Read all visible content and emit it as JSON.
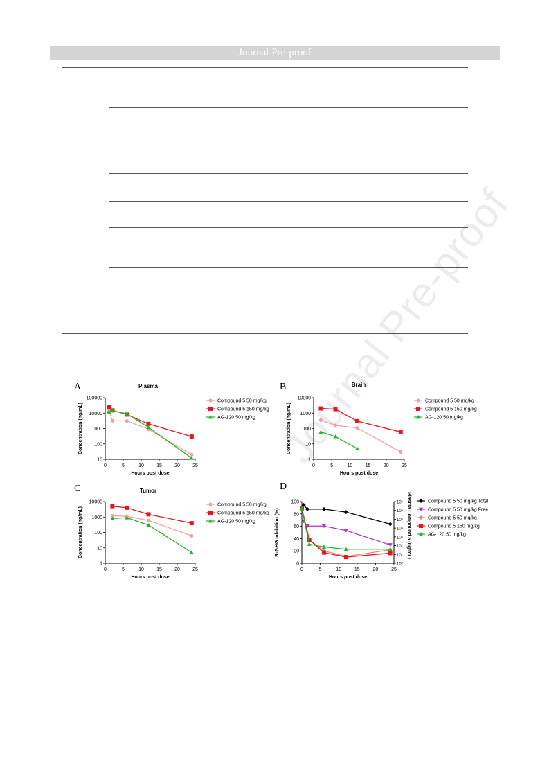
{
  "header": {
    "title": "Journal Pre-proof"
  },
  "watermark": {
    "text": "Journal Pre-proof"
  },
  "figure": {
    "panels": [
      {
        "letter": "A",
        "title": "Plasma"
      },
      {
        "letter": "B",
        "title": "Brain"
      },
      {
        "letter": "C",
        "title": "Tumor"
      },
      {
        "letter": "D",
        "title": ""
      }
    ]
  },
  "colors": {
    "c5_50": "#f4a0a0",
    "c5_150": "#e8141e",
    "ag120": "#22b422",
    "total": "#000000",
    "free": "#b030c8",
    "c5_50_D": "#f08080",
    "c5_150_D": "#e8141e"
  },
  "chart_data": [
    {
      "type": "line",
      "title": "Plasma",
      "xlabel": "Hours post dose",
      "ylabel": "Concentration (ng/mL)",
      "yscale": "log",
      "xlim": [
        0,
        25
      ],
      "ylim": [
        10,
        100000
      ],
      "xticks": [
        "0",
        "5",
        "10",
        "15",
        "20",
        "25"
      ],
      "yticks": [
        "10",
        "100",
        "1000",
        "10000",
        "100000"
      ],
      "legend": "right",
      "series": [
        {
          "name": "Compound 5 50 mg/kg",
          "color": "#f4a0a0",
          "marker": "circle",
          "x": [
            1,
            2,
            6,
            12,
            24
          ],
          "y": [
            15000,
            3200,
            3100,
            900,
            20
          ]
        },
        {
          "name": "Compound 5 150 mg/kg",
          "color": "#e8141e",
          "marker": "square",
          "x": [
            1,
            2,
            6,
            12,
            24
          ],
          "y": [
            25000,
            15000,
            8000,
            2000,
            300
          ]
        },
        {
          "name": "AG-120 50 mg/kg",
          "color": "#22b422",
          "marker": "triangle",
          "x": [
            1,
            2,
            6,
            12,
            24
          ],
          "y": [
            12000,
            14000,
            9000,
            1200,
            12
          ]
        }
      ]
    },
    {
      "type": "line",
      "title": "Brain",
      "xlabel": "Hours post dose",
      "ylabel": "Concentration (ng/mL)",
      "yscale": "log",
      "xlim": [
        0,
        25
      ],
      "ylim": [
        1,
        10000
      ],
      "xticks": [
        "0",
        "5",
        "10",
        "15",
        "20",
        "25"
      ],
      "yticks": [
        "1",
        "10",
        "100",
        "1000",
        "10000"
      ],
      "legend": "right",
      "series": [
        {
          "name": "Compound 5 50 mg/kg",
          "color": "#f4a0a0",
          "marker": "circle",
          "x": [
            2,
            6,
            12,
            24
          ],
          "y": [
            350,
            160,
            110,
            3
          ]
        },
        {
          "name": "Compound 5 150 mg/kg",
          "color": "#e8141e",
          "marker": "square",
          "x": [
            2,
            6,
            12,
            24
          ],
          "y": [
            2000,
            1800,
            300,
            60
          ]
        },
        {
          "name": "AG-120 50 mg/kg",
          "color": "#22b422",
          "marker": "triangle",
          "x": [
            2,
            6,
            12
          ],
          "y": [
            60,
            30,
            5
          ]
        }
      ]
    },
    {
      "type": "line",
      "title": "Tumor",
      "xlabel": "Hours post dose",
      "ylabel": "Concentration (ng/mL)",
      "yscale": "log",
      "xlim": [
        0,
        25
      ],
      "ylim": [
        1,
        10000
      ],
      "xticks": [
        "0",
        "5",
        "10",
        "15",
        "20",
        "25"
      ],
      "yticks": [
        "1",
        "10",
        "100",
        "1000",
        "10000"
      ],
      "legend": "right",
      "series": [
        {
          "name": "Compound 5 50 mg/kg",
          "color": "#f4a0a0",
          "marker": "circle",
          "x": [
            2,
            6,
            12,
            24
          ],
          "y": [
            1200,
            1100,
            600,
            60
          ]
        },
        {
          "name": "Compound 5 150 mg/kg",
          "color": "#e8141e",
          "marker": "square",
          "x": [
            2,
            6,
            12,
            24
          ],
          "y": [
            5000,
            4000,
            1500,
            400
          ]
        },
        {
          "name": "AG-120 50 mg/kg",
          "color": "#22b422",
          "marker": "triangle",
          "x": [
            2,
            6,
            12,
            24
          ],
          "y": [
            800,
            900,
            300,
            5
          ]
        }
      ]
    },
    {
      "type": "line",
      "title": "",
      "xlabel": "Hours post dose",
      "ylabel": "R-2-HG Inhibition (%)",
      "y2label": "Plasma Compound 5 (ng/mL)",
      "xlim": [
        0,
        25
      ],
      "ylim": [
        0,
        110
      ],
      "y2lim": [
        1,
        10000000
      ],
      "xticks": [
        "0",
        "5",
        "10",
        "15",
        "20",
        "25"
      ],
      "yticks": [
        "0",
        "20",
        "40",
        "60",
        "80",
        "100"
      ],
      "y2ticks": [
        "10⁰",
        "10¹",
        "10²",
        "10³",
        "10⁴",
        "10⁵",
        "10⁶",
        "10⁷"
      ],
      "legend": "right",
      "series": [
        {
          "name": "Compound 5 50 mg/kg Total",
          "color": "#000000",
          "marker": "diamond",
          "axis": "y2",
          "x": [
            0.5,
            1.5,
            6,
            12,
            24
          ],
          "y": [
            4000000,
            1400000,
            1400000,
            650000,
            28000
          ]
        },
        {
          "name": "Compound 5 50 mg/kg Free",
          "color": "#b030c8",
          "marker": "tri-down",
          "axis": "y2",
          "x": [
            0.5,
            1.5,
            6,
            12,
            24
          ],
          "y": [
            60000,
            17000,
            17000,
            5200,
            120
          ]
        },
        {
          "name": "Compound 5 50 mg/kg",
          "color": "#f08080",
          "marker": "circle",
          "axis": "y",
          "x": [
            0,
            2,
            6,
            12,
            24
          ],
          "y": [
            98,
            42,
            22,
            12,
            24
          ]
        },
        {
          "name": "Compound 5 150 mg/kg",
          "color": "#e8141e",
          "marker": "square",
          "axis": "y",
          "x": [
            0,
            2,
            6,
            12,
            24
          ],
          "y": [
            98,
            42,
            19,
            11,
            18
          ]
        },
        {
          "name": "AG-120 50 mg/kg",
          "color": "#22b422",
          "marker": "triangle",
          "axis": "y",
          "x": [
            0,
            2,
            6,
            12,
            24
          ],
          "y": [
            98,
            34,
            29,
            25,
            25
          ]
        }
      ]
    }
  ]
}
